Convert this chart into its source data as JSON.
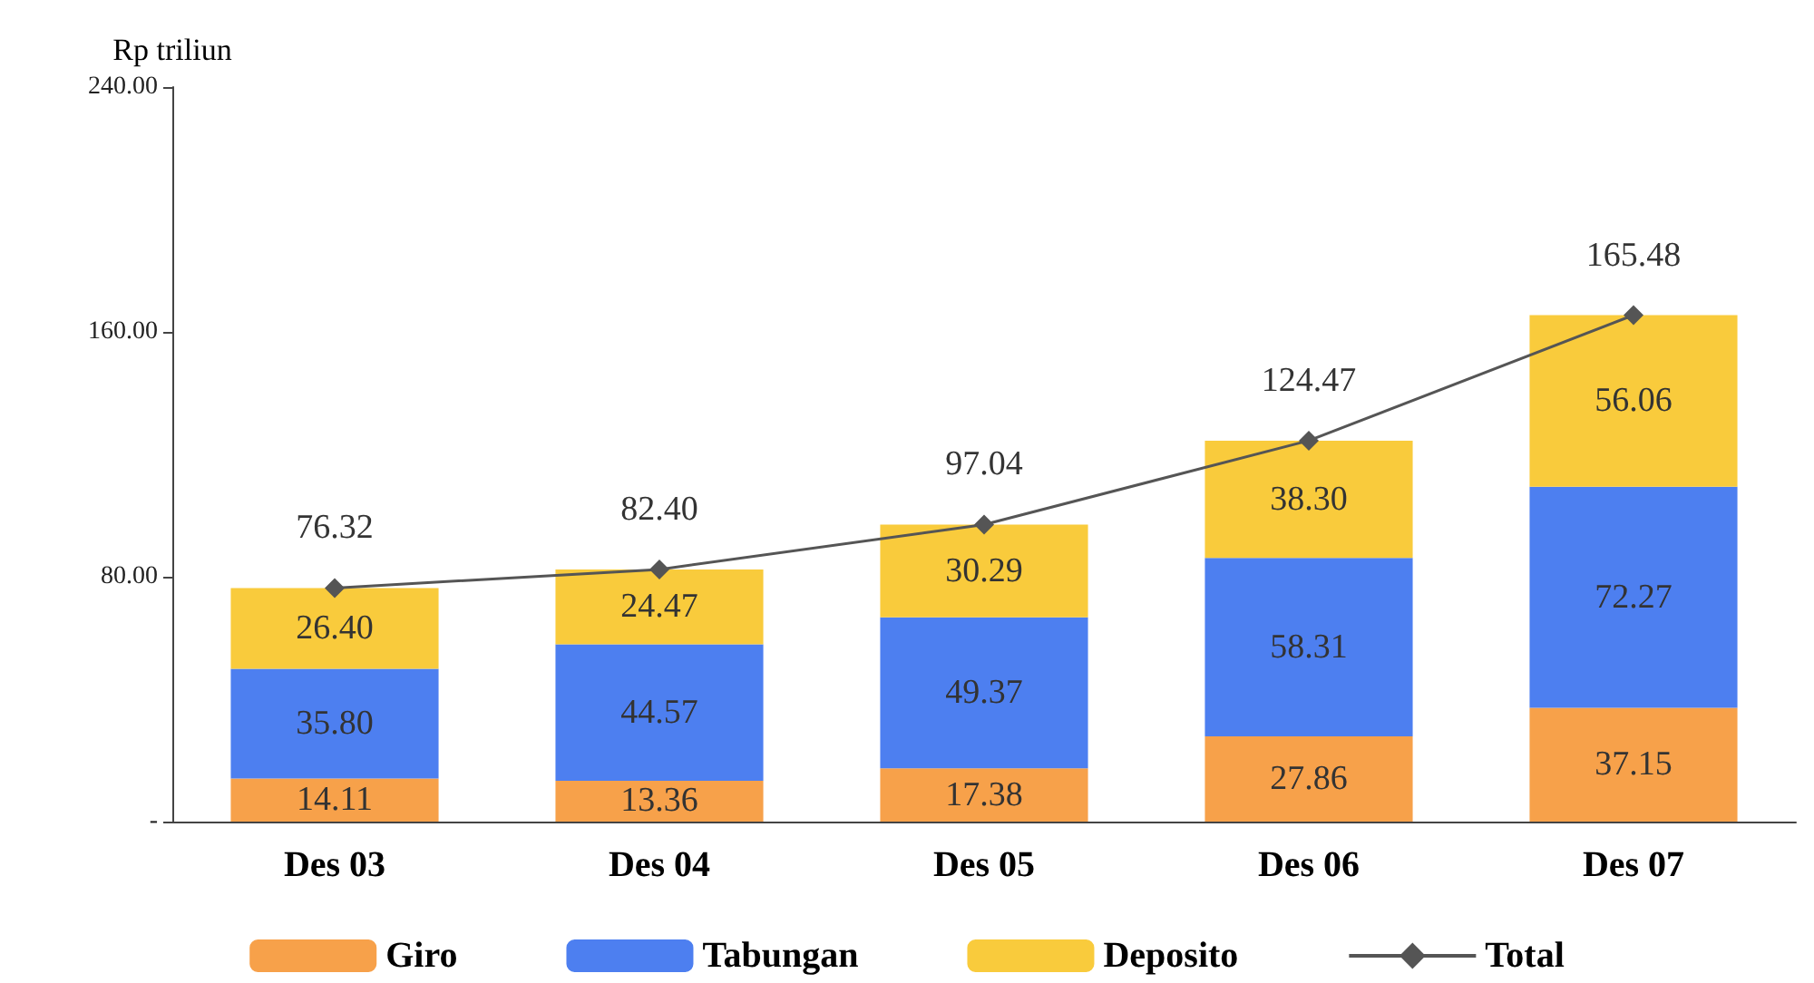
{
  "chart_data": {
    "type": "bar",
    "ylabel": "Rp triliun",
    "stacked": true,
    "categories": [
      "Des 03",
      "Des 04",
      "Des 05",
      "Des 06",
      "Des 07"
    ],
    "series": [
      {
        "name": "Giro",
        "color": "#f7a14a",
        "values": [
          14.11,
          13.36,
          17.38,
          27.86,
          37.15
        ],
        "value_labels": [
          "14.11",
          "13.36",
          "17.38",
          "27.86",
          "37.15"
        ]
      },
      {
        "name": "Tabungan",
        "color": "#4d7ff0",
        "values": [
          35.8,
          44.57,
          49.37,
          58.31,
          72.27
        ],
        "value_labels": [
          "35.80",
          "44.57",
          "49.37",
          "58.31",
          "72.27"
        ]
      },
      {
        "name": "Deposito",
        "color": "#f9cb3c",
        "values": [
          26.4,
          24.47,
          30.29,
          38.3,
          56.06
        ],
        "value_labels": [
          "26.40",
          "24.47",
          "30.29",
          "38.30",
          "56.06"
        ]
      },
      {
        "name": "Total",
        "type": "line",
        "color": "#555555",
        "values": [
          76.32,
          82.4,
          97.04,
          124.47,
          165.48
        ],
        "value_labels": [
          "76.32",
          "82.40",
          "97.04",
          "124.47",
          "165.48"
        ]
      }
    ],
    "ylim": [
      0,
      240
    ],
    "yticks": [
      {
        "value": 0,
        "label": "-"
      },
      {
        "value": 80,
        "label": "80.00"
      },
      {
        "value": 160,
        "label": "160.00"
      },
      {
        "value": 240,
        "label": "240.00"
      }
    ],
    "grid": false,
    "legend": "bottom",
    "marker": "diamond",
    "line_style": "solid"
  }
}
